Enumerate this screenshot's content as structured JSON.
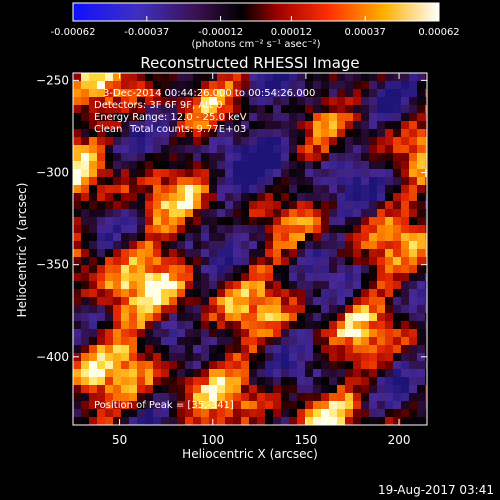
{
  "chart_data": {
    "type": "heatmap",
    "title": "Reconstructed RHESSI Image",
    "xlabel": "Heliocentric X (arcsec)",
    "ylabel": "Heliocentric Y (arcsec)",
    "xlim": [
      25,
      215
    ],
    "ylim": [
      -437,
      -246
    ],
    "x_ticks": [
      50,
      100,
      150,
      200
    ],
    "y_ticks": [
      -250,
      -300,
      -350,
      -400
    ],
    "colorbar": {
      "colormap": "RHESSI heat (blue-purple-black-red-orange-yellow-white)",
      "range": [
        -0.00062,
        0.00062
      ],
      "tick_values": [
        -0.00062,
        -0.00037,
        -0.00012,
        0.00012,
        0.00037,
        0.00062
      ],
      "tick_labels": [
        "-0.00062",
        "-0.00037",
        "-0.00012",
        "0.00012",
        "0.00037",
        "0.00062"
      ],
      "units_label": "(photons cm⁻² s⁻¹ asec⁻²)"
    },
    "annotations": [
      "3-Dec-2014 00:44:26.000 to 00:54:26.000",
      "Detectors: 3F 6F 9F, Att 0",
      "Energy Range: 12.0 - 25.0 keV",
      "Clean",
      "Total counts: 9.77E+03"
    ],
    "peak_label": "Position of Peak = [35,-341]",
    "peak_position": [
      35,
      -341
    ]
  },
  "footer": {
    "timestamp": "19-Aug-2017 03:41"
  }
}
